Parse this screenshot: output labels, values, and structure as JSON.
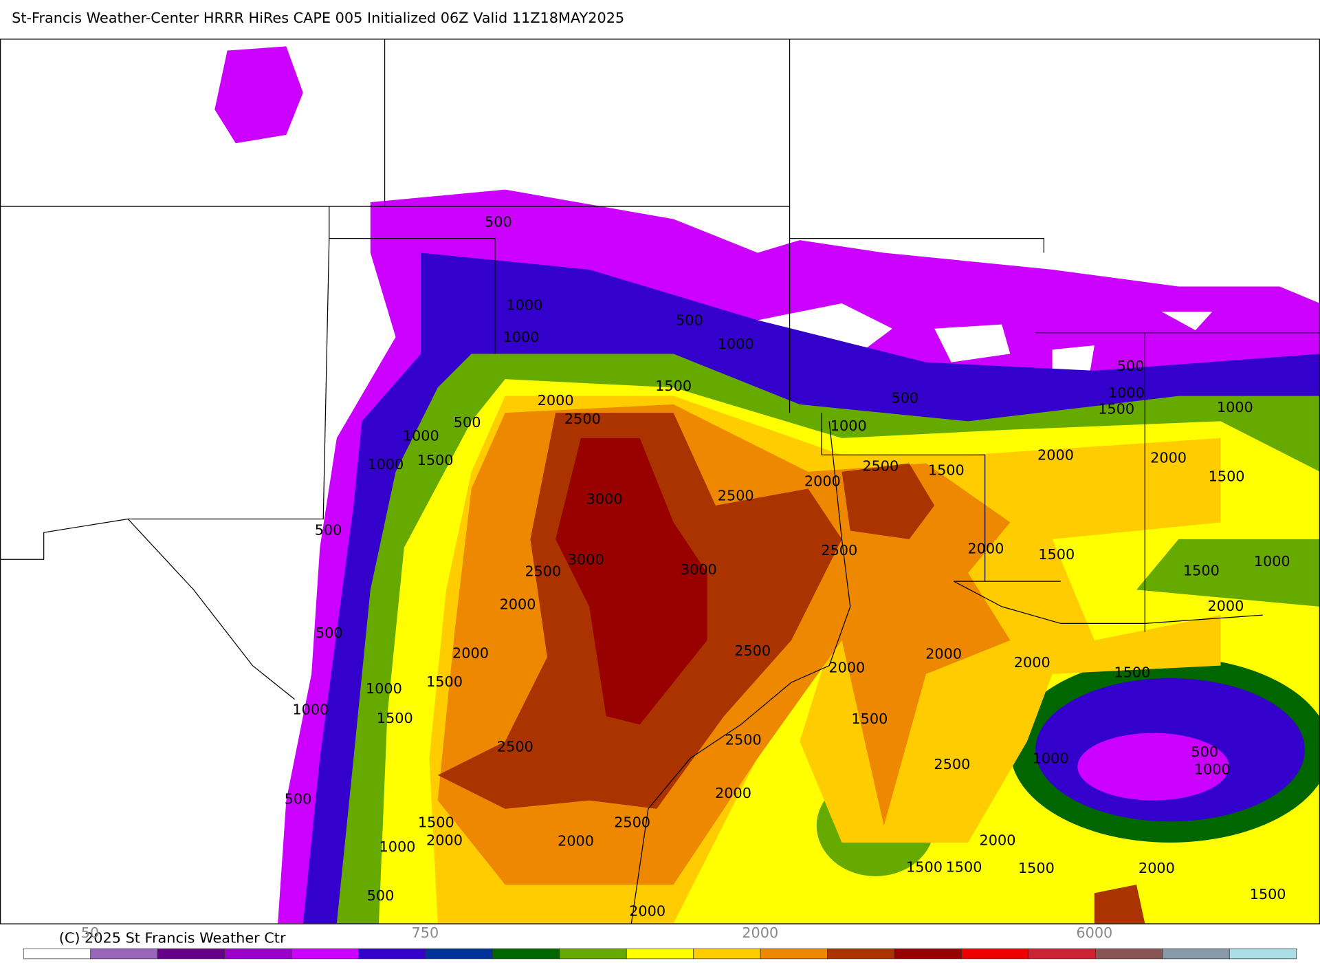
{
  "header": {
    "title": "St-Francis Weather-Center HRRR HiRes CAPE  005 Initialized  06Z Valid 11Z18MAY2025"
  },
  "contour_labels": [
    500,
    1000,
    1000,
    500,
    1000,
    1500,
    2000,
    2500,
    500,
    1000,
    1500,
    1000,
    3000,
    2500,
    2000,
    2500,
    1500,
    1000,
    500,
    500,
    1000,
    1500,
    1000,
    2000,
    2000,
    1500,
    500,
    3000,
    3000,
    2500,
    2500,
    2000,
    1500,
    1000,
    1500,
    2000,
    2000,
    500,
    2000,
    2500,
    2000,
    2000,
    2000,
    1500,
    1000,
    1500,
    1000,
    1500,
    1500,
    2500,
    2500,
    1000,
    500,
    1000,
    2500,
    2000,
    500,
    1500,
    2000,
    2500,
    2000,
    2000,
    1000,
    1500,
    1500,
    1500,
    2000,
    500,
    1500,
    2000
  ],
  "footer": {
    "copyright": "(C) 2025 St Francis Weather Ctr"
  },
  "colorbar": {
    "colors": [
      "#ffffff",
      "#9966bb",
      "#660088",
      "#9900cc",
      "#cc00ff",
      "#3300cc",
      "#003399",
      "#006600",
      "#66aa00",
      "#ffff00",
      "#ffcc00",
      "#ee8800",
      "#aa3300",
      "#990000",
      "#ee0000",
      "#cc2233",
      "#885555",
      "#8899aa",
      "#aadde6"
    ],
    "labels": [
      "50",
      "750",
      "2000",
      "6000"
    ]
  }
}
